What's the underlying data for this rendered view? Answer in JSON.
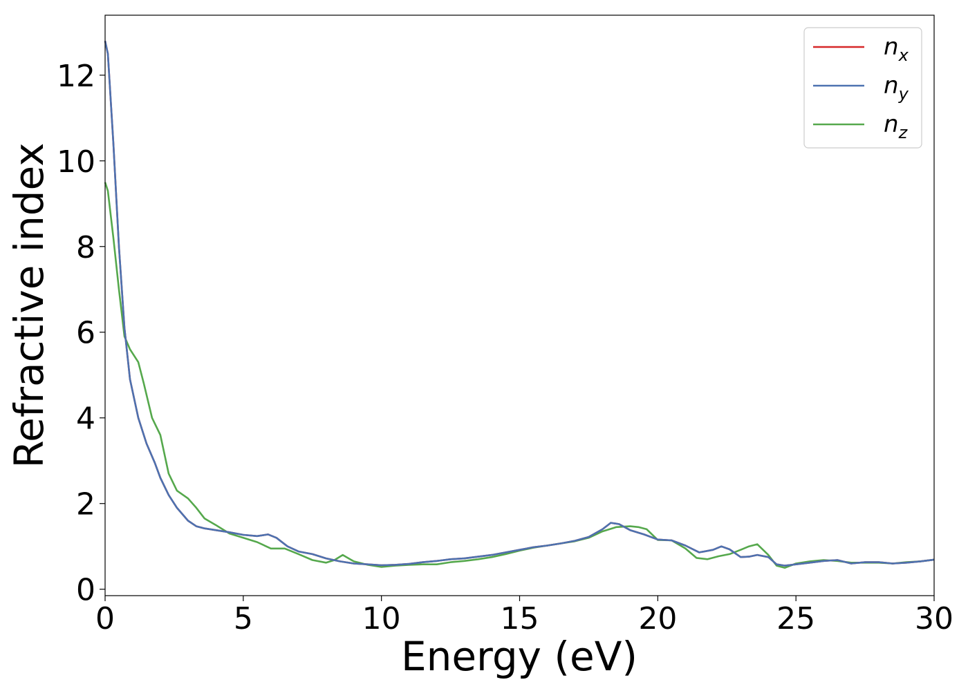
{
  "chart_data": {
    "type": "line",
    "xlabel": "Energy (eV)",
    "ylabel": "Refractive index",
    "xlim": [
      0,
      30
    ],
    "ylim": [
      -0.15,
      13.4
    ],
    "xticks": [
      0,
      5,
      10,
      15,
      20,
      25,
      30
    ],
    "yticks": [
      0,
      2,
      4,
      6,
      8,
      10,
      12
    ],
    "grid": false,
    "legend_position": "top-right",
    "series": [
      {
        "name": "n",
        "subscript": "x",
        "color": "#d62728",
        "x": [
          0,
          0.1,
          0.3,
          0.5,
          0.7,
          0.9,
          1.2,
          1.5,
          1.8,
          2.0,
          2.3,
          2.6,
          3.0,
          3.3,
          3.6,
          4.0,
          4.5,
          5.0,
          5.5,
          5.9,
          6.2,
          6.6,
          7.0,
          7.5,
          8.0,
          8.5,
          9.0,
          9.5,
          10.0,
          10.5,
          11.0,
          11.5,
          12.0,
          12.5,
          13.0,
          13.5,
          14.0,
          14.5,
          15.0,
          15.5,
          16.0,
          16.5,
          17.0,
          17.5,
          18.0,
          18.3,
          18.6,
          19.0,
          19.5,
          20.0,
          20.5,
          21.0,
          21.5,
          22.0,
          22.3,
          22.6,
          23.0,
          23.3,
          23.6,
          24.0,
          24.3,
          24.6,
          25.0,
          25.5,
          26.0,
          26.5,
          27.0,
          27.5,
          28.0,
          28.5,
          29.0,
          29.5,
          30.0
        ],
        "y": [
          12.8,
          12.5,
          10.4,
          8.0,
          6.1,
          4.9,
          4.0,
          3.4,
          2.95,
          2.6,
          2.2,
          1.9,
          1.6,
          1.47,
          1.42,
          1.38,
          1.33,
          1.27,
          1.24,
          1.28,
          1.2,
          1.0,
          0.88,
          0.82,
          0.72,
          0.65,
          0.6,
          0.58,
          0.56,
          0.57,
          0.59,
          0.63,
          0.66,
          0.7,
          0.72,
          0.76,
          0.8,
          0.86,
          0.92,
          0.98,
          1.02,
          1.07,
          1.13,
          1.22,
          1.4,
          1.55,
          1.52,
          1.38,
          1.28,
          1.16,
          1.14,
          1.02,
          0.86,
          0.92,
          1.0,
          0.93,
          0.75,
          0.76,
          0.8,
          0.75,
          0.58,
          0.55,
          0.58,
          0.62,
          0.66,
          0.68,
          0.6,
          0.63,
          0.63,
          0.6,
          0.62,
          0.65,
          0.69
        ]
      },
      {
        "name": "n",
        "subscript": "y",
        "color": "#4c72b0",
        "x": [
          0,
          0.1,
          0.3,
          0.5,
          0.7,
          0.9,
          1.2,
          1.5,
          1.8,
          2.0,
          2.3,
          2.6,
          3.0,
          3.3,
          3.6,
          4.0,
          4.5,
          5.0,
          5.5,
          5.9,
          6.2,
          6.6,
          7.0,
          7.5,
          8.0,
          8.5,
          9.0,
          9.5,
          10.0,
          10.5,
          11.0,
          11.5,
          12.0,
          12.5,
          13.0,
          13.5,
          14.0,
          14.5,
          15.0,
          15.5,
          16.0,
          16.5,
          17.0,
          17.5,
          18.0,
          18.3,
          18.6,
          19.0,
          19.5,
          20.0,
          20.5,
          21.0,
          21.5,
          22.0,
          22.3,
          22.6,
          23.0,
          23.3,
          23.6,
          24.0,
          24.3,
          24.6,
          25.0,
          25.5,
          26.0,
          26.5,
          27.0,
          27.5,
          28.0,
          28.5,
          29.0,
          29.5,
          30.0
        ],
        "y": [
          12.8,
          12.5,
          10.4,
          8.0,
          6.1,
          4.9,
          4.0,
          3.4,
          2.95,
          2.6,
          2.2,
          1.9,
          1.6,
          1.47,
          1.42,
          1.38,
          1.33,
          1.27,
          1.24,
          1.28,
          1.2,
          1.0,
          0.88,
          0.82,
          0.72,
          0.65,
          0.6,
          0.58,
          0.56,
          0.57,
          0.59,
          0.63,
          0.66,
          0.7,
          0.72,
          0.76,
          0.8,
          0.86,
          0.92,
          0.98,
          1.02,
          1.07,
          1.13,
          1.22,
          1.4,
          1.55,
          1.52,
          1.38,
          1.28,
          1.16,
          1.14,
          1.02,
          0.86,
          0.92,
          1.0,
          0.93,
          0.75,
          0.76,
          0.8,
          0.75,
          0.58,
          0.55,
          0.58,
          0.62,
          0.66,
          0.68,
          0.6,
          0.63,
          0.63,
          0.6,
          0.62,
          0.65,
          0.69
        ]
      },
      {
        "name": "n",
        "subscript": "z",
        "color": "#55a84c",
        "x": [
          0,
          0.1,
          0.3,
          0.5,
          0.7,
          0.9,
          1.2,
          1.4,
          1.7,
          2.0,
          2.3,
          2.6,
          3.0,
          3.3,
          3.6,
          4.0,
          4.5,
          5.0,
          5.5,
          6.0,
          6.5,
          7.0,
          7.5,
          8.0,
          8.3,
          8.6,
          9.0,
          9.5,
          10.0,
          10.5,
          11.0,
          11.5,
          12.0,
          12.5,
          13.0,
          13.5,
          14.0,
          14.5,
          15.0,
          15.5,
          16.0,
          16.5,
          17.0,
          17.5,
          18.0,
          18.5,
          19.0,
          19.3,
          19.6,
          20.0,
          20.5,
          21.0,
          21.4,
          21.8,
          22.2,
          22.6,
          23.0,
          23.3,
          23.6,
          24.0,
          24.3,
          24.6,
          25.0,
          25.5,
          26.0,
          26.5,
          27.0,
          27.5,
          28.0,
          28.5,
          29.0,
          29.5,
          30.0
        ],
        "y": [
          9.5,
          9.3,
          8.2,
          7.0,
          5.9,
          5.6,
          5.3,
          4.8,
          4.0,
          3.6,
          2.7,
          2.3,
          2.12,
          1.9,
          1.65,
          1.5,
          1.3,
          1.2,
          1.1,
          0.95,
          0.95,
          0.82,
          0.68,
          0.62,
          0.68,
          0.8,
          0.65,
          0.57,
          0.52,
          0.55,
          0.57,
          0.58,
          0.58,
          0.63,
          0.66,
          0.7,
          0.75,
          0.82,
          0.9,
          0.97,
          1.02,
          1.07,
          1.12,
          1.2,
          1.35,
          1.45,
          1.47,
          1.45,
          1.4,
          1.15,
          1.14,
          0.95,
          0.73,
          0.7,
          0.77,
          0.82,
          0.92,
          1.0,
          1.05,
          0.8,
          0.55,
          0.5,
          0.6,
          0.65,
          0.68,
          0.66,
          0.62,
          0.62,
          0.62,
          0.6,
          0.63,
          0.65,
          0.69
        ]
      }
    ]
  }
}
